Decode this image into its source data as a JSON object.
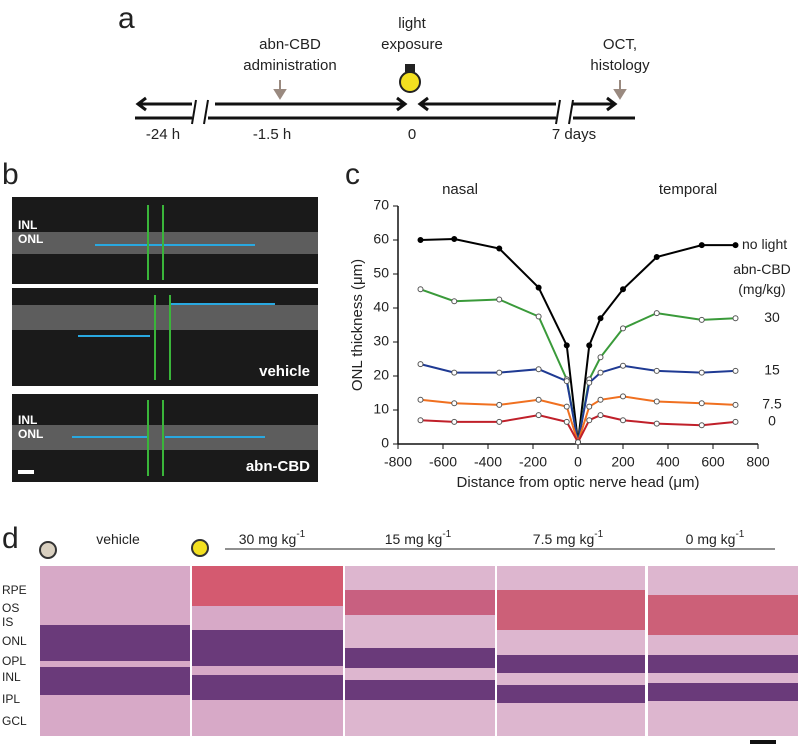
{
  "panel_labels": [
    "a",
    "b",
    "c",
    "d"
  ],
  "timeline": {
    "events": [
      [
        "abn-CBD",
        "administration"
      ],
      [
        "light",
        "exposure"
      ],
      [
        "OCT,",
        "histology"
      ]
    ],
    "times": [
      "-24 h",
      "-1.5 h",
      "0",
      "7 days"
    ]
  },
  "oct": [
    {
      "layers": [
        "INL",
        "ONL"
      ]
    },
    {
      "caption": "vehicle"
    },
    {
      "layers": [
        "INL",
        "ONL"
      ],
      "caption": "abn-CBD"
    }
  ],
  "chart_data": {
    "type": "line",
    "xlabel": "Distance from optic nerve head (μm)",
    "ylabel": "ONL thickness (μm)",
    "annotations": [
      "nasal",
      "temporal"
    ],
    "legend_title": [
      "abn-CBD",
      "(mg/kg)"
    ],
    "x": [
      -700,
      -550,
      -350,
      -175,
      -50,
      0,
      50,
      100,
      200,
      350,
      550,
      700
    ],
    "series": [
      {
        "name": "no light",
        "color": "#000000",
        "values": [
          60,
          60.3,
          57.5,
          46,
          29,
          0.5,
          29,
          37,
          45.5,
          55,
          58.5,
          58.5
        ]
      },
      {
        "name": "30",
        "color": "#3a9a3a",
        "values": [
          45.5,
          42,
          42.5,
          37.5,
          19,
          0.5,
          19,
          25.5,
          34,
          38.5,
          36.5,
          37
        ]
      },
      {
        "name": "15",
        "color": "#1f3a93",
        "values": [
          23.5,
          21,
          21,
          22,
          18.5,
          0.5,
          18,
          21,
          23,
          21.5,
          21,
          21.5
        ]
      },
      {
        "name": "7.5",
        "color": "#f07020",
        "values": [
          13,
          12,
          11.5,
          13,
          11,
          0.5,
          11,
          13,
          14,
          12.5,
          12,
          11.5
        ]
      },
      {
        "name": "0",
        "color": "#c0202a",
        "values": [
          7,
          6.5,
          6.5,
          8.5,
          6.5,
          0.5,
          7,
          8.5,
          7,
          6,
          5.5,
          6.5
        ]
      }
    ],
    "xlim": [
      -800,
      800
    ],
    "xticks": [
      -800,
      -600,
      -400,
      -200,
      0,
      200,
      400,
      600,
      800
    ],
    "ylim": [
      0,
      70
    ],
    "yticks": [
      0,
      10,
      20,
      30,
      40,
      50,
      60,
      70
    ]
  },
  "histology": {
    "groups": [
      {
        "label": "vehicle"
      },
      {
        "label": "30 mg kg",
        "sup": "-1"
      },
      {
        "label": "15 mg kg",
        "sup": "-1"
      },
      {
        "label": "7.5 mg kg",
        "sup": "-1"
      },
      {
        "label": "0 mg kg",
        "sup": "-1"
      }
    ],
    "layers": [
      "RPE",
      "OS",
      "IS",
      "ONL",
      "OPL",
      "INL",
      "IPL",
      "GCL"
    ]
  }
}
